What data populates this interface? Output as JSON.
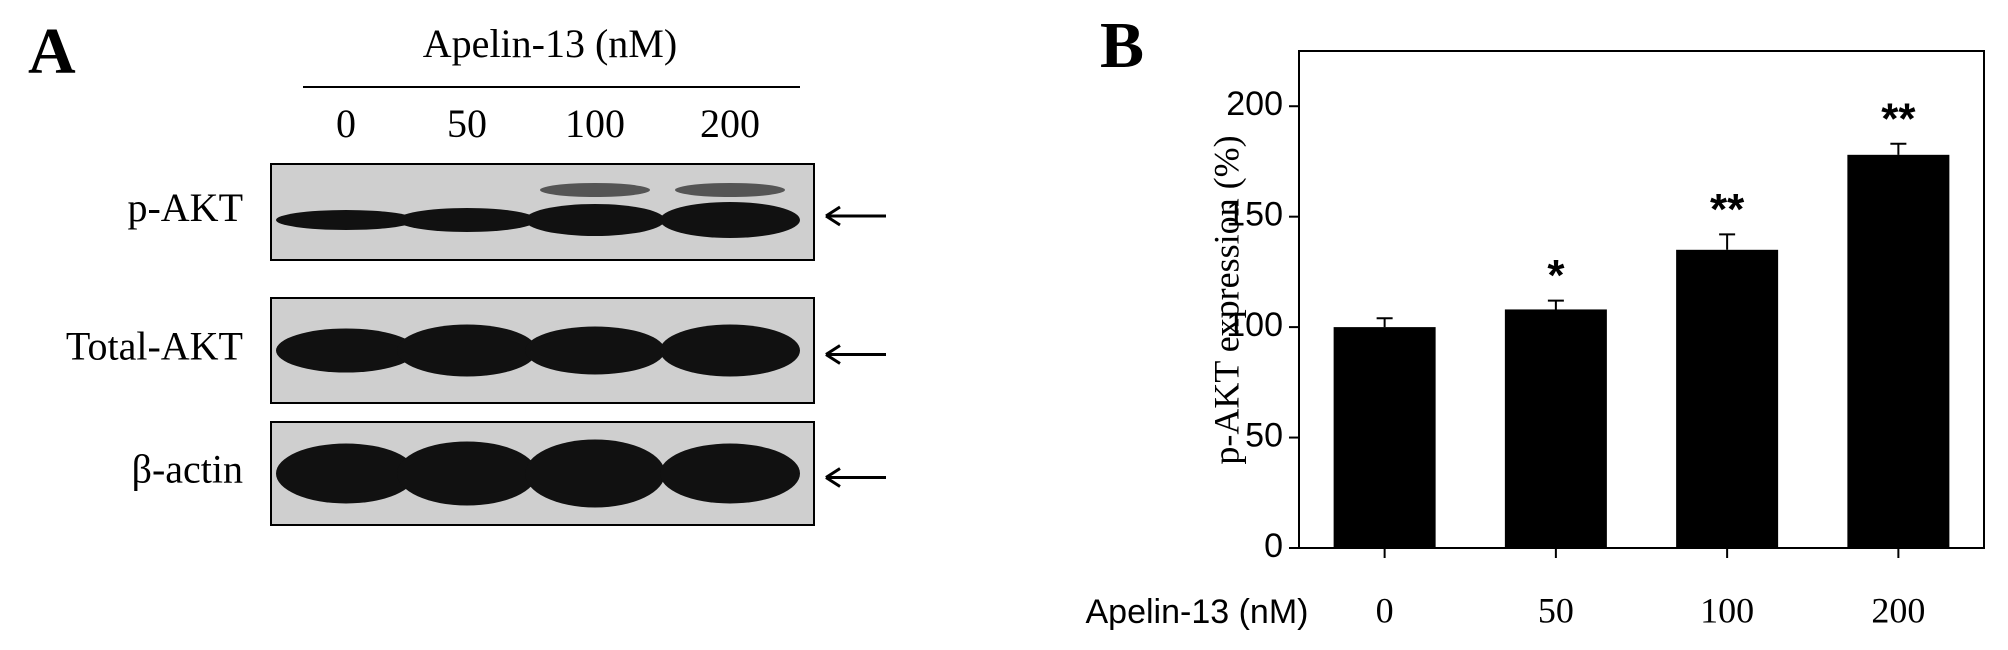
{
  "panel_a": {
    "label": "A",
    "title": "Apelin-13 (nM)",
    "lanes": [
      "0",
      "50",
      "100",
      "200"
    ],
    "rows": [
      "p-AKT",
      "Total-AKT",
      "β-actin"
    ]
  },
  "chart_data": {
    "type": "bar",
    "label": "B",
    "ylabel": "p-AKT expression (%)",
    "xlabel": "Apelin-13 (nM)",
    "categories": [
      "0",
      "50",
      "100",
      "200"
    ],
    "values": [
      100,
      108,
      135,
      178
    ],
    "errors": [
      4,
      4,
      7,
      5
    ],
    "color": "#000000",
    "annotations": [
      {
        "category": "50",
        "text": "*"
      },
      {
        "category": "100",
        "text": "**"
      },
      {
        "category": "200",
        "text": "**"
      }
    ],
    "ylim": [
      0,
      225
    ],
    "yticks": [
      0,
      50,
      100,
      150,
      200
    ],
    "grid": false
  }
}
